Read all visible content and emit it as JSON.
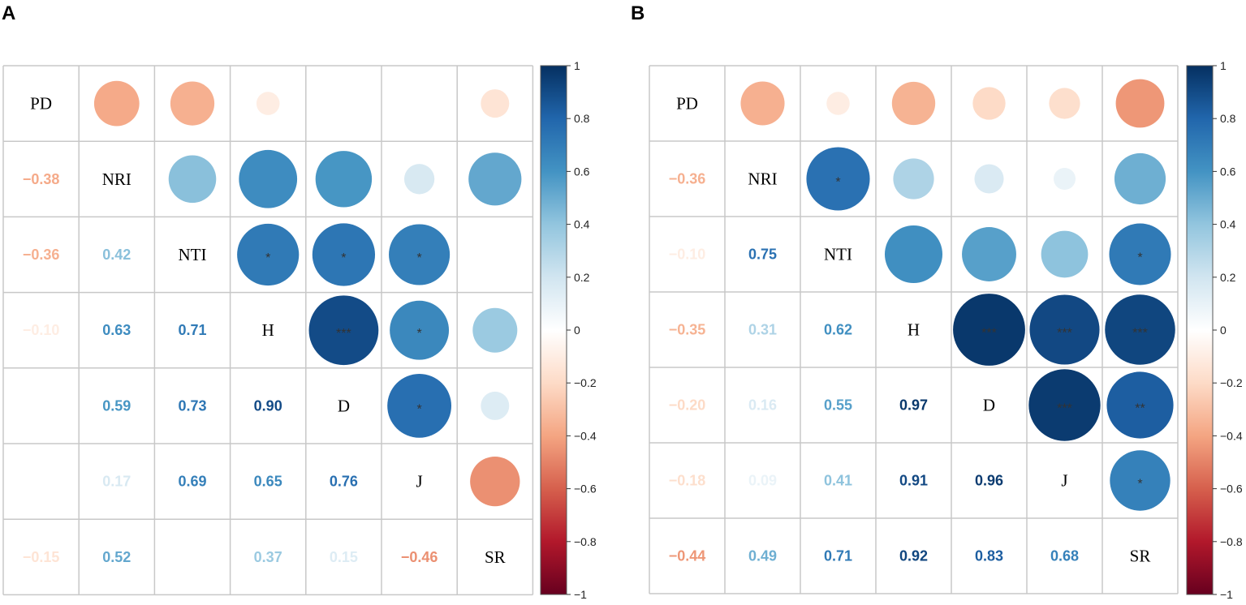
{
  "chart_data": [
    {
      "type": "heatmap",
      "panel": "A",
      "variables": [
        "PD",
        "NRI",
        "NTI",
        "H",
        "D",
        "J",
        "SR"
      ],
      "matrix": [
        [
          1,
          -0.38,
          -0.36,
          -0.1,
          null,
          null,
          -0.15
        ],
        [
          -0.38,
          1,
          0.42,
          0.63,
          0.59,
          0.17,
          0.52
        ],
        [
          -0.36,
          0.42,
          1,
          0.71,
          0.73,
          0.69,
          null
        ],
        [
          -0.1,
          0.63,
          0.71,
          1,
          0.9,
          0.65,
          0.37
        ],
        [
          null,
          0.59,
          0.73,
          0.9,
          1,
          0.76,
          0.15
        ],
        [
          null,
          0.17,
          0.69,
          0.65,
          0.76,
          1,
          -0.46
        ],
        [
          -0.15,
          0.52,
          null,
          0.37,
          0.15,
          -0.46,
          1
        ]
      ],
      "significance": [
        {
          "row": "NTI",
          "col": "H",
          "label": "*"
        },
        {
          "row": "NTI",
          "col": "D",
          "label": "*"
        },
        {
          "row": "NTI",
          "col": "J",
          "label": "*"
        },
        {
          "row": "H",
          "col": "D",
          "label": "***"
        },
        {
          "row": "H",
          "col": "J",
          "label": "*"
        },
        {
          "row": "D",
          "col": "J",
          "label": "*"
        }
      ]
    },
    {
      "type": "heatmap",
      "panel": "B",
      "variables": [
        "PD",
        "NRI",
        "NTI",
        "H",
        "D",
        "J",
        "SR"
      ],
      "matrix": [
        [
          1,
          -0.36,
          -0.1,
          -0.35,
          -0.2,
          -0.18,
          -0.44
        ],
        [
          -0.36,
          1,
          0.75,
          0.31,
          0.16,
          0.09,
          0.49
        ],
        [
          -0.1,
          0.75,
          1,
          0.62,
          0.55,
          0.41,
          0.71
        ],
        [
          -0.35,
          0.31,
          0.62,
          1,
          0.97,
          0.91,
          0.92
        ],
        [
          -0.2,
          0.16,
          0.55,
          0.97,
          1,
          0.96,
          0.83
        ],
        [
          -0.18,
          0.09,
          0.41,
          0.91,
          0.96,
          1,
          0.68
        ],
        [
          -0.44,
          0.49,
          0.71,
          0.92,
          0.83,
          0.68,
          1
        ]
      ],
      "significance": [
        {
          "row": "NRI",
          "col": "NTI",
          "label": "*"
        },
        {
          "row": "NTI",
          "col": "SR",
          "label": "*"
        },
        {
          "row": "H",
          "col": "D",
          "label": "***"
        },
        {
          "row": "H",
          "col": "J",
          "label": "***"
        },
        {
          "row": "H",
          "col": "SR",
          "label": "***"
        },
        {
          "row": "D",
          "col": "J",
          "label": "***"
        },
        {
          "row": "D",
          "col": "SR",
          "label": "**"
        },
        {
          "row": "J",
          "col": "SR",
          "label": "*"
        }
      ]
    }
  ],
  "colorbar": {
    "range": [
      -1,
      1
    ],
    "ticks": [
      "1",
      "0.8",
      "0.6",
      "0.4",
      "0.2",
      "0",
      "−0.2",
      "−0.4",
      "−0.6",
      "−0.8",
      "−1"
    ],
    "tick_values": [
      1,
      0.8,
      0.6,
      0.4,
      0.2,
      0,
      -0.2,
      -0.4,
      -0.6,
      -0.8,
      -1
    ]
  }
}
